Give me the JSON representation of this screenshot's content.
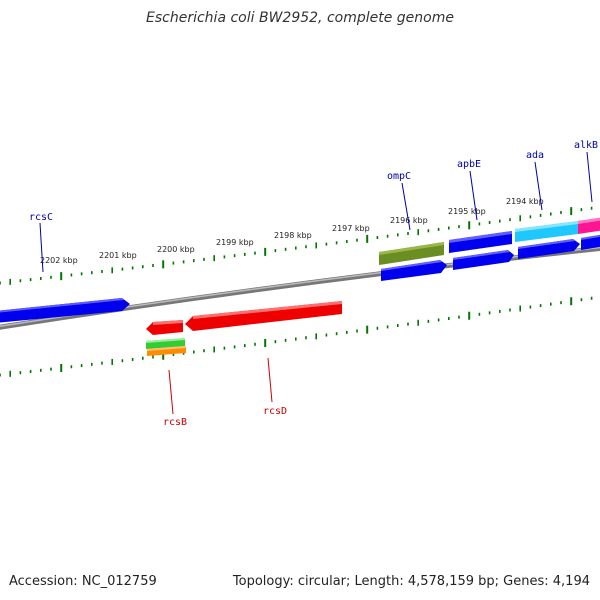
{
  "title": "Escherichia coli BW2952, complete genome",
  "footer": {
    "accession": "Accession: NC_012759",
    "summary": "Topology: circular; Length: 4,578,159 bp; Genes: 4,194"
  },
  "colors": {
    "tick": "#007700",
    "backbone": "#888888",
    "forward_label": "#0000aa",
    "reverse_label": "#cc0000"
  },
  "scale_labels": [
    "2202 kbp",
    "2201 kbp",
    "2200 kbp",
    "2199 kbp",
    "2198 kbp",
    "2197 kbp",
    "2196 kbp",
    "2195 kbp",
    "2194 kbp"
  ],
  "gene_labels": {
    "forward": [
      "rcsC",
      "ompC",
      "apbE",
      "ada",
      "alkB"
    ],
    "reverse": [
      "rcsB",
      "rcsD"
    ]
  },
  "features": [
    {
      "name": "rcsC",
      "color": "#0000ee",
      "strand": "forward",
      "type": "CDS"
    },
    {
      "name": "ompC",
      "color": "#6b8e23",
      "strand": "forward",
      "type": "gene"
    },
    {
      "name": "ompC",
      "color": "#0000ee",
      "strand": "forward",
      "type": "CDS"
    },
    {
      "name": "apbE",
      "color": "#0000ee",
      "strand": "forward",
      "type": "CDS"
    },
    {
      "name": "ada",
      "color": "#1ec8ff",
      "strand": "forward",
      "type": "gene"
    },
    {
      "name": "ada",
      "color": "#0000ee",
      "strand": "forward",
      "type": "CDS"
    },
    {
      "name": "alkB",
      "color": "#ff1493",
      "strand": "forward",
      "type": "gene"
    },
    {
      "name": "alkB",
      "color": "#0000ee",
      "strand": "forward",
      "type": "CDS"
    },
    {
      "name": "rcsB",
      "color": "#ee0000",
      "strand": "reverse",
      "type": "CDS"
    },
    {
      "name": "rcsB",
      "color": "#33cc33",
      "strand": "reverse",
      "type": "misc"
    },
    {
      "name": "rcsB",
      "color": "#ff8c00",
      "strand": "reverse",
      "type": "misc"
    },
    {
      "name": "rcsD",
      "color": "#ee0000",
      "strand": "reverse",
      "type": "CDS"
    }
  ]
}
